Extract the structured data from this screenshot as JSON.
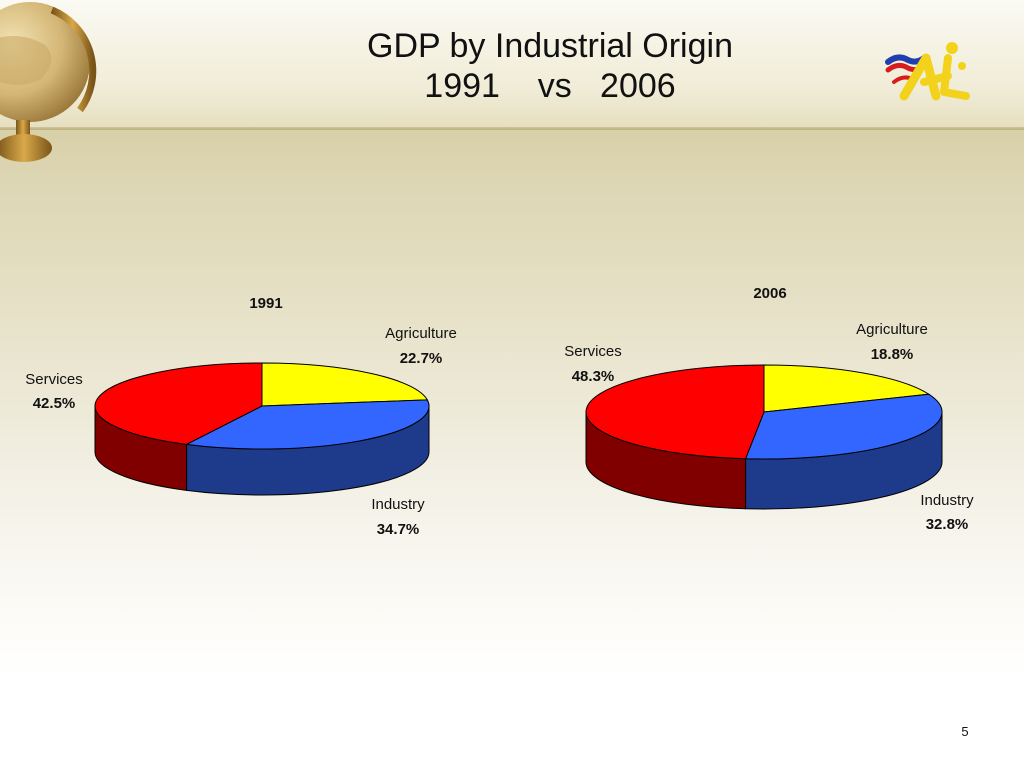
{
  "slide": {
    "title_line1": "GDP by Industrial Origin",
    "title_line2": "1991    vs   2006",
    "page_number": "5",
    "logo_icon": "flag-mascot-logo-icon",
    "globe_icon": "globe-icon"
  },
  "colors": {
    "agriculture": "#ffff00",
    "agriculture_side": "#9a9a00",
    "industry": "#3366ff",
    "industry_side": "#1e3a8a",
    "services": "#ff0000",
    "services_side": "#800000"
  },
  "chart_data": [
    {
      "type": "pie",
      "title": "1991",
      "slices": [
        {
          "label": "Agriculture",
          "value": 22.7,
          "display": "22.7%"
        },
        {
          "label": "Industry",
          "value": 34.7,
          "display": "34.7%"
        },
        {
          "label": "Services",
          "value": 42.5,
          "display": "42.5%"
        }
      ],
      "style": "3d"
    },
    {
      "type": "pie",
      "title": "2006",
      "slices": [
        {
          "label": "Agriculture",
          "value": 18.8,
          "display": "18.8%"
        },
        {
          "label": "Industry",
          "value": 32.8,
          "display": "32.8%"
        },
        {
          "label": "Services",
          "value": 48.3,
          "display": "48.3%"
        }
      ],
      "style": "3d"
    }
  ]
}
